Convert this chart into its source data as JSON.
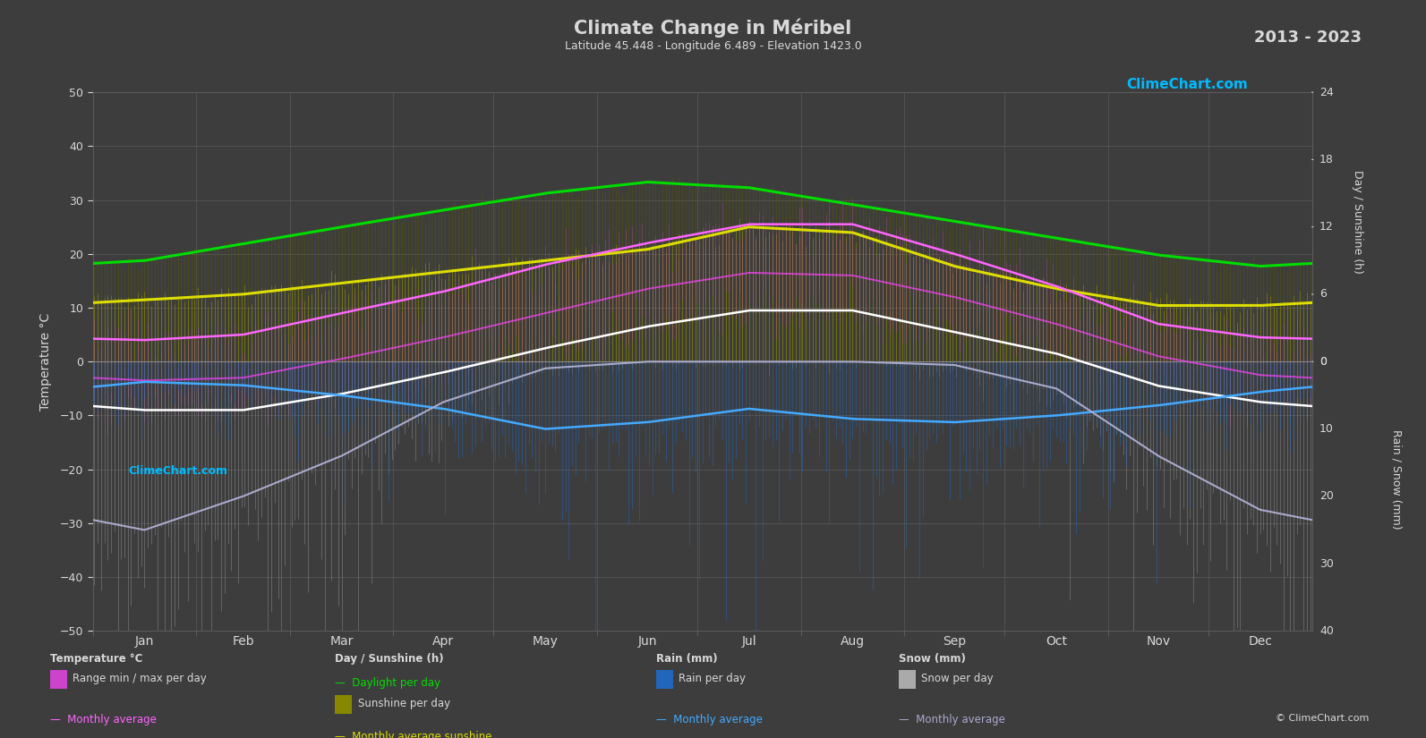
{
  "title": "Climate Change in Méribel",
  "subtitle": "Latitude 45.448 - Longitude 6.489 - Elevation 1423.0",
  "year_range": "2013 - 2023",
  "background_color": "#3d3d3d",
  "text_color": "#d8d8d8",
  "grid_color": "#5a5a5a",
  "months": [
    "Jan",
    "Feb",
    "Mar",
    "Apr",
    "May",
    "Jun",
    "Jul",
    "Aug",
    "Sep",
    "Oct",
    "Nov",
    "Dec"
  ],
  "days_per_month": [
    31,
    28,
    31,
    30,
    31,
    30,
    31,
    31,
    30,
    31,
    30,
    31
  ],
  "temp_ticks": [
    -50,
    -40,
    -30,
    -20,
    -10,
    0,
    10,
    20,
    30,
    40,
    50
  ],
  "sun_ticks": [
    0,
    6,
    12,
    18,
    24
  ],
  "rain_ticks": [
    0,
    10,
    20,
    30,
    40
  ],
  "sun_scale": 2.0833,
  "rain_scale": -1.25,
  "temp_avg_monthly": [
    -3.5,
    -3.0,
    0.5,
    4.5,
    9.0,
    13.5,
    16.5,
    16.0,
    12.0,
    7.0,
    1.0,
    -2.5
  ],
  "temp_min_monthly": [
    -9.0,
    -9.0,
    -6.0,
    -2.0,
    2.5,
    6.5,
    9.5,
    9.5,
    5.5,
    1.5,
    -4.5,
    -7.5
  ],
  "temp_max_monthly": [
    4.0,
    5.0,
    9.0,
    13.0,
    18.0,
    22.0,
    25.5,
    25.5,
    20.0,
    14.0,
    7.0,
    4.5
  ],
  "daylight_monthly": [
    9.0,
    10.5,
    12.0,
    13.5,
    15.0,
    16.0,
    15.5,
    14.0,
    12.5,
    11.0,
    9.5,
    8.5
  ],
  "sunshine_monthly": [
    5.5,
    6.0,
    7.0,
    8.0,
    9.0,
    10.0,
    12.0,
    11.5,
    8.5,
    6.5,
    5.0,
    5.0
  ],
  "rain_avg_monthly": [
    3.0,
    3.5,
    5.0,
    7.0,
    10.0,
    9.0,
    7.0,
    8.5,
    9.0,
    8.0,
    6.5,
    4.5
  ],
  "snow_avg_monthly": [
    25.0,
    20.0,
    14.0,
    6.0,
    1.0,
    0.0,
    0.0,
    0.0,
    0.5,
    4.0,
    14.0,
    22.0
  ],
  "rain_line_monthly": [
    3.0,
    3.5,
    5.0,
    7.0,
    10.0,
    9.0,
    7.0,
    8.5,
    9.0,
    8.0,
    6.5,
    4.5
  ],
  "snow_line_monthly": [
    25.0,
    20.0,
    14.0,
    6.0,
    1.0,
    0.0,
    0.0,
    0.0,
    0.5,
    4.0,
    14.0,
    22.0
  ]
}
